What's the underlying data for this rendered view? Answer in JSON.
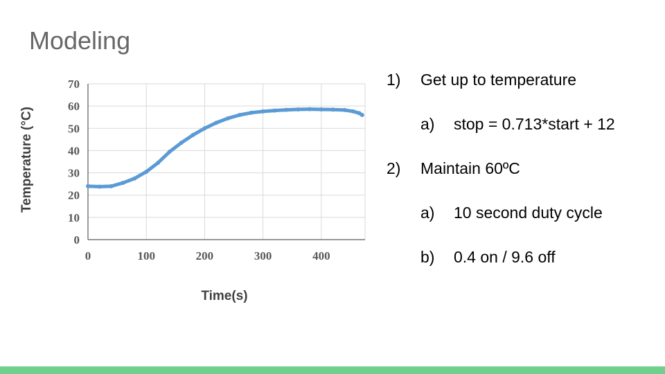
{
  "slide": {
    "title": "Modeling",
    "accent_color": "#6fd08c"
  },
  "list": [
    {
      "marker": "1)",
      "text": "Get up to temperature",
      "level": 0
    },
    {
      "marker": "a)",
      "text": "stop = 0.713*start + 12",
      "level": 1
    },
    {
      "marker": "2)",
      "text": "Maintain 60ºC",
      "level": 0
    },
    {
      "marker": "a)",
      "text": "10 second duty cycle",
      "level": 1
    },
    {
      "marker": "b)",
      "text": "0.4 on / 9.6 off",
      "level": 1
    }
  ],
  "chart_data": {
    "type": "scatter",
    "title": "",
    "xlabel": "Time(s)",
    "ylabel": "Temperature (°C)",
    "xlim": [
      0,
      475
    ],
    "ylim": [
      0,
      70
    ],
    "xticks": [
      0,
      100,
      200,
      300,
      400
    ],
    "yticks": [
      0,
      10,
      20,
      30,
      40,
      50,
      60,
      70
    ],
    "grid": true,
    "legend": "none",
    "series": [
      {
        "color": "#5b9bd5",
        "x": [
          0,
          20,
          40,
          60,
          80,
          100,
          120,
          140,
          160,
          180,
          200,
          220,
          240,
          260,
          280,
          300,
          320,
          340,
          360,
          380,
          400,
          420,
          440,
          455,
          465,
          470
        ],
        "y": [
          24,
          23.8,
          24,
          25.5,
          27.5,
          30.5,
          34.5,
          39.5,
          43.5,
          47,
          50,
          52.5,
          54.5,
          56,
          57,
          57.6,
          58,
          58.3,
          58.5,
          58.6,
          58.5,
          58.4,
          58.2,
          57.6,
          56.8,
          56
        ]
      }
    ]
  }
}
